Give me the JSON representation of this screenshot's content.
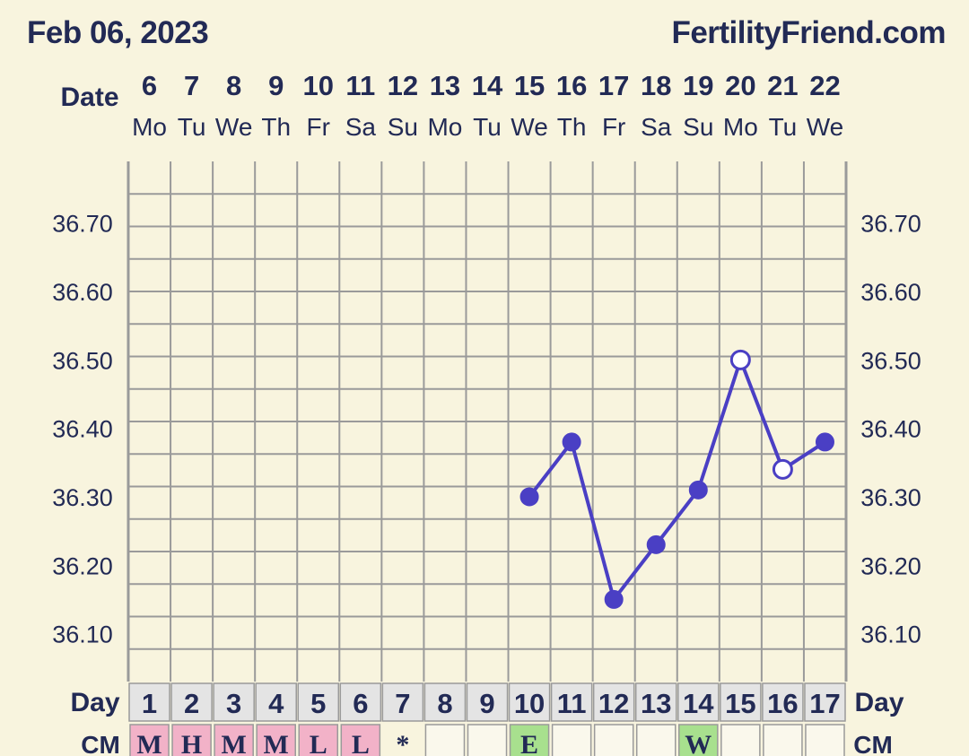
{
  "header": {
    "date": "Feb 06, 2023",
    "site": "FertilityFriend.com"
  },
  "labels": {
    "date_row": "Date",
    "day_row": "Day",
    "cm_row": "CM"
  },
  "colors": {
    "background": "#f8f4de",
    "line": "#4a3fc4",
    "grid": "#9a9a9a",
    "day_cell": "#e4e4e4",
    "cm_pink": "#f2b2c8",
    "cm_green": "#a8e08e",
    "cm_empty": "#faf8ec"
  },
  "chart_data": {
    "type": "line",
    "dates": [
      "6",
      "7",
      "8",
      "9",
      "10",
      "11",
      "12",
      "13",
      "14",
      "15",
      "16",
      "17",
      "18",
      "19",
      "20",
      "21",
      "22"
    ],
    "weekdays": [
      "Mo",
      "Tu",
      "We",
      "Th",
      "Fr",
      "Sa",
      "Su",
      "Mo",
      "Tu",
      "We",
      "Th",
      "Fr",
      "Sa",
      "Su",
      "Mo",
      "Tu",
      "We"
    ],
    "cycle_days": [
      "1",
      "2",
      "3",
      "4",
      "5",
      "6",
      "7",
      "8",
      "9",
      "10",
      "11",
      "12",
      "13",
      "14",
      "15",
      "16",
      "17"
    ],
    "y_ticks": [
      "36.70",
      "36.60",
      "36.50",
      "36.40",
      "36.30",
      "36.20",
      "36.10"
    ],
    "ylim": [
      36.03,
      36.79
    ],
    "temps": [
      null,
      null,
      null,
      null,
      null,
      null,
      null,
      null,
      null,
      36.3,
      36.38,
      36.15,
      36.23,
      36.31,
      36.5,
      36.34,
      36.38
    ],
    "open_points": [
      14,
      15
    ],
    "cm": [
      {
        "text": "M",
        "color": "pink"
      },
      {
        "text": "H",
        "color": "pink"
      },
      {
        "text": "M",
        "color": "pink"
      },
      {
        "text": "M",
        "color": "pink"
      },
      {
        "text": "L",
        "color": "pink"
      },
      {
        "text": "L",
        "color": "pink"
      },
      {
        "text": "*",
        "color": "none"
      },
      {
        "text": "",
        "color": "empty"
      },
      {
        "text": "",
        "color": "empty"
      },
      {
        "text": "E",
        "color": "green"
      },
      {
        "text": "",
        "color": "empty"
      },
      {
        "text": "",
        "color": "empty"
      },
      {
        "text": "",
        "color": "empty"
      },
      {
        "text": "W",
        "color": "green"
      },
      {
        "text": "",
        "color": "empty"
      },
      {
        "text": "",
        "color": "empty"
      },
      {
        "text": "",
        "color": "empty"
      }
    ]
  }
}
